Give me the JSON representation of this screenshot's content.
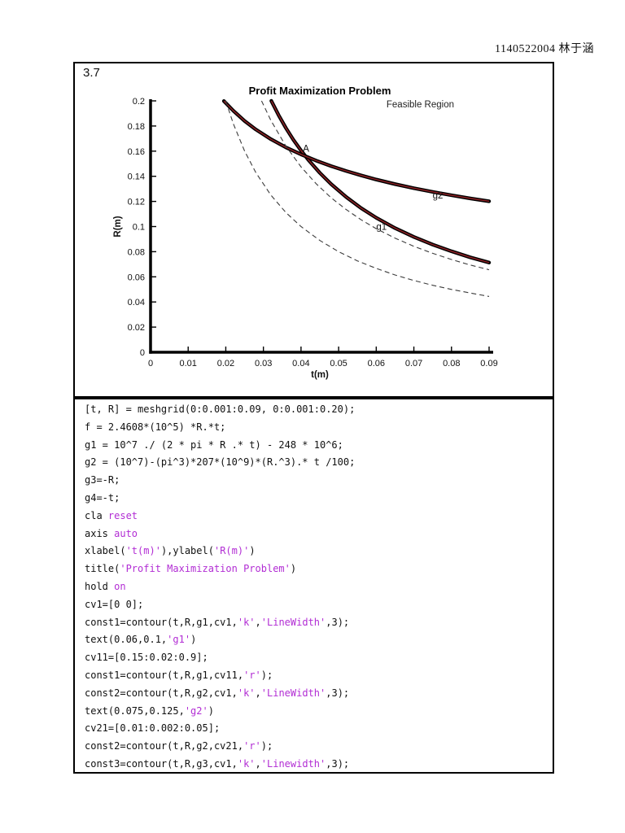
{
  "page": {
    "header_name": "1140522004 林于涵",
    "problem_number": "3.7"
  },
  "chart_data": {
    "type": "line",
    "title": "Profit Maximization Problem",
    "subtitle": "Feasible Region",
    "xlabel": "t(m)",
    "ylabel": "R(m)",
    "xlim": [
      0,
      0.09
    ],
    "ylim": [
      0,
      0.2
    ],
    "xticks": [
      0,
      0.01,
      0.02,
      0.03,
      0.04,
      0.05,
      0.06,
      0.07,
      0.08,
      0.09
    ],
    "yticks": [
      0,
      0.02,
      0.04,
      0.06,
      0.08,
      0.1,
      0.12,
      0.14,
      0.16,
      0.18,
      0.2
    ],
    "grid": false,
    "legend": "none",
    "colors": {
      "thick": "#000000",
      "red_core": "#8e2226",
      "dashed": "#3c3c3c"
    },
    "series": [
      {
        "name": "g1-zero-contour",
        "style": "thick",
        "points": [
          [
            0.0321,
            0.2
          ],
          [
            0.034,
            0.1888
          ],
          [
            0.036,
            0.1783
          ],
          [
            0.038,
            0.1689
          ],
          [
            0.04,
            0.1605
          ],
          [
            0.042,
            0.1529
          ],
          [
            0.045,
            0.1427
          ],
          [
            0.048,
            0.1338
          ],
          [
            0.052,
            0.1235
          ],
          [
            0.056,
            0.1146
          ],
          [
            0.06,
            0.107
          ],
          [
            0.065,
            0.0988
          ],
          [
            0.07,
            0.0917
          ],
          [
            0.075,
            0.0856
          ],
          [
            0.08,
            0.0803
          ],
          [
            0.085,
            0.0755
          ],
          [
            0.09,
            0.0713
          ]
        ]
      },
      {
        "name": "g2-zero-contour",
        "style": "thick",
        "points": [
          [
            0.0195,
            0.1999
          ],
          [
            0.022,
            0.1922
          ],
          [
            0.025,
            0.184
          ],
          [
            0.028,
            0.1772
          ],
          [
            0.032,
            0.1695
          ],
          [
            0.036,
            0.163
          ],
          [
            0.04,
            0.1574
          ],
          [
            0.044,
            0.1525
          ],
          [
            0.048,
            0.1481
          ],
          [
            0.052,
            0.1442
          ],
          [
            0.056,
            0.1407
          ],
          [
            0.06,
            0.1374
          ],
          [
            0.065,
            0.1338
          ],
          [
            0.07,
            0.1305
          ],
          [
            0.075,
            0.1276
          ],
          [
            0.08,
            0.1249
          ],
          [
            0.085,
            0.1224
          ],
          [
            0.09,
            0.1201
          ]
        ]
      },
      {
        "name": "g1-level-contour-dashed",
        "style": "dashed",
        "points": [
          [
            0.0295,
            0.2
          ],
          [
            0.032,
            0.1844
          ],
          [
            0.036,
            0.1639
          ],
          [
            0.04,
            0.1475
          ],
          [
            0.044,
            0.1341
          ],
          [
            0.048,
            0.1229
          ],
          [
            0.052,
            0.1135
          ],
          [
            0.056,
            0.1054
          ],
          [
            0.06,
            0.0983
          ],
          [
            0.065,
            0.0908
          ],
          [
            0.07,
            0.0843
          ],
          [
            0.075,
            0.0787
          ],
          [
            0.08,
            0.0738
          ],
          [
            0.085,
            0.0694
          ],
          [
            0.09,
            0.0656
          ]
        ]
      },
      {
        "name": "g2-level-contour-dashed",
        "style": "dashed",
        "points": [
          [
            0.02,
            0.2
          ],
          [
            0.022,
            0.1818
          ],
          [
            0.025,
            0.16
          ],
          [
            0.028,
            0.1429
          ],
          [
            0.032,
            0.125
          ],
          [
            0.036,
            0.1111
          ],
          [
            0.04,
            0.1
          ],
          [
            0.045,
            0.0889
          ],
          [
            0.05,
            0.08
          ],
          [
            0.055,
            0.0727
          ],
          [
            0.06,
            0.0667
          ],
          [
            0.065,
            0.0615
          ],
          [
            0.07,
            0.0571
          ],
          [
            0.075,
            0.0533
          ],
          [
            0.08,
            0.05
          ],
          [
            0.085,
            0.0471
          ],
          [
            0.09,
            0.0444
          ]
        ]
      }
    ],
    "annotations": [
      {
        "text": "A",
        "t": 0.0405,
        "R": 0.162
      },
      {
        "text": "g1",
        "t": 0.06,
        "R": 0.1
      },
      {
        "text": "g2",
        "t": 0.075,
        "R": 0.125
      }
    ]
  },
  "code": {
    "highlight_color": "#B22DD4",
    "lines": [
      [
        [
          "[t, R] = meshgrid(0:0.001:0.09, 0:0.001:0.20);",
          "k"
        ]
      ],
      [
        [
          "f = 2.4608*(10^5) *R.*t;",
          "k"
        ]
      ],
      [
        [
          "g1 = 10^7 ./ (2 * pi * R .* t) - 248 * 10^6;",
          "k"
        ]
      ],
      [
        [
          "g2 = (10^7)-(pi^3)*207*(10^9)*(R.^3).* t /100;",
          "k"
        ]
      ],
      [
        [
          "g3=-R;",
          "k"
        ]
      ],
      [
        [
          "g4=-t;",
          "k"
        ]
      ],
      [
        [
          "cla ",
          "k"
        ],
        [
          "reset",
          "p"
        ]
      ],
      [
        [
          "axis ",
          "k"
        ],
        [
          "auto",
          "p"
        ]
      ],
      [
        [
          "xlabel(",
          "k"
        ],
        [
          "'t(m)'",
          "p"
        ],
        [
          "),ylabel(",
          "k"
        ],
        [
          "'R(m)'",
          "p"
        ],
        [
          ")",
          "k"
        ]
      ],
      [
        [
          "title(",
          "k"
        ],
        [
          "'Profit Maximization Problem'",
          "p"
        ],
        [
          ")",
          "k"
        ]
      ],
      [
        [
          "hold ",
          "k"
        ],
        [
          "on",
          "p"
        ]
      ],
      [
        [
          "cv1=[0 0];",
          "k"
        ]
      ],
      [
        [
          "const1=contour(t,R,g1,cv1,",
          "k"
        ],
        [
          "'k'",
          "p"
        ],
        [
          ",",
          "k"
        ],
        [
          "'LineWidth'",
          "p"
        ],
        [
          ",3);",
          "k"
        ]
      ],
      [
        [
          "text(0.06,0.1,",
          "k"
        ],
        [
          "'g1'",
          "p"
        ],
        [
          ")",
          "k"
        ]
      ],
      [
        [
          "cv11=[0.15:0.02:0.9];",
          "k"
        ]
      ],
      [
        [
          "const1=contour(t,R,g1,cv11,",
          "k"
        ],
        [
          "'r'",
          "p"
        ],
        [
          ");",
          "k"
        ]
      ],
      [
        [
          "const2=contour(t,R,g2,cv1,",
          "k"
        ],
        [
          "'k'",
          "p"
        ],
        [
          ",",
          "k"
        ],
        [
          "'LineWidth'",
          "p"
        ],
        [
          ",3);",
          "k"
        ]
      ],
      [
        [
          "text(0.075,0.125,",
          "k"
        ],
        [
          "'g2'",
          "p"
        ],
        [
          ")",
          "k"
        ]
      ],
      [
        [
          "cv21=[0.01:0.002:0.05];",
          "k"
        ]
      ],
      [
        [
          "const2=contour(t,R,g2,cv21,",
          "k"
        ],
        [
          "'r'",
          "p"
        ],
        [
          ");",
          "k"
        ]
      ],
      [
        [
          "const3=contour(t,R,g3,cv1,",
          "k"
        ],
        [
          "'k'",
          "p"
        ],
        [
          ",",
          "k"
        ],
        [
          "'Linewidth'",
          "p"
        ],
        [
          ",3);",
          "k"
        ]
      ]
    ]
  }
}
